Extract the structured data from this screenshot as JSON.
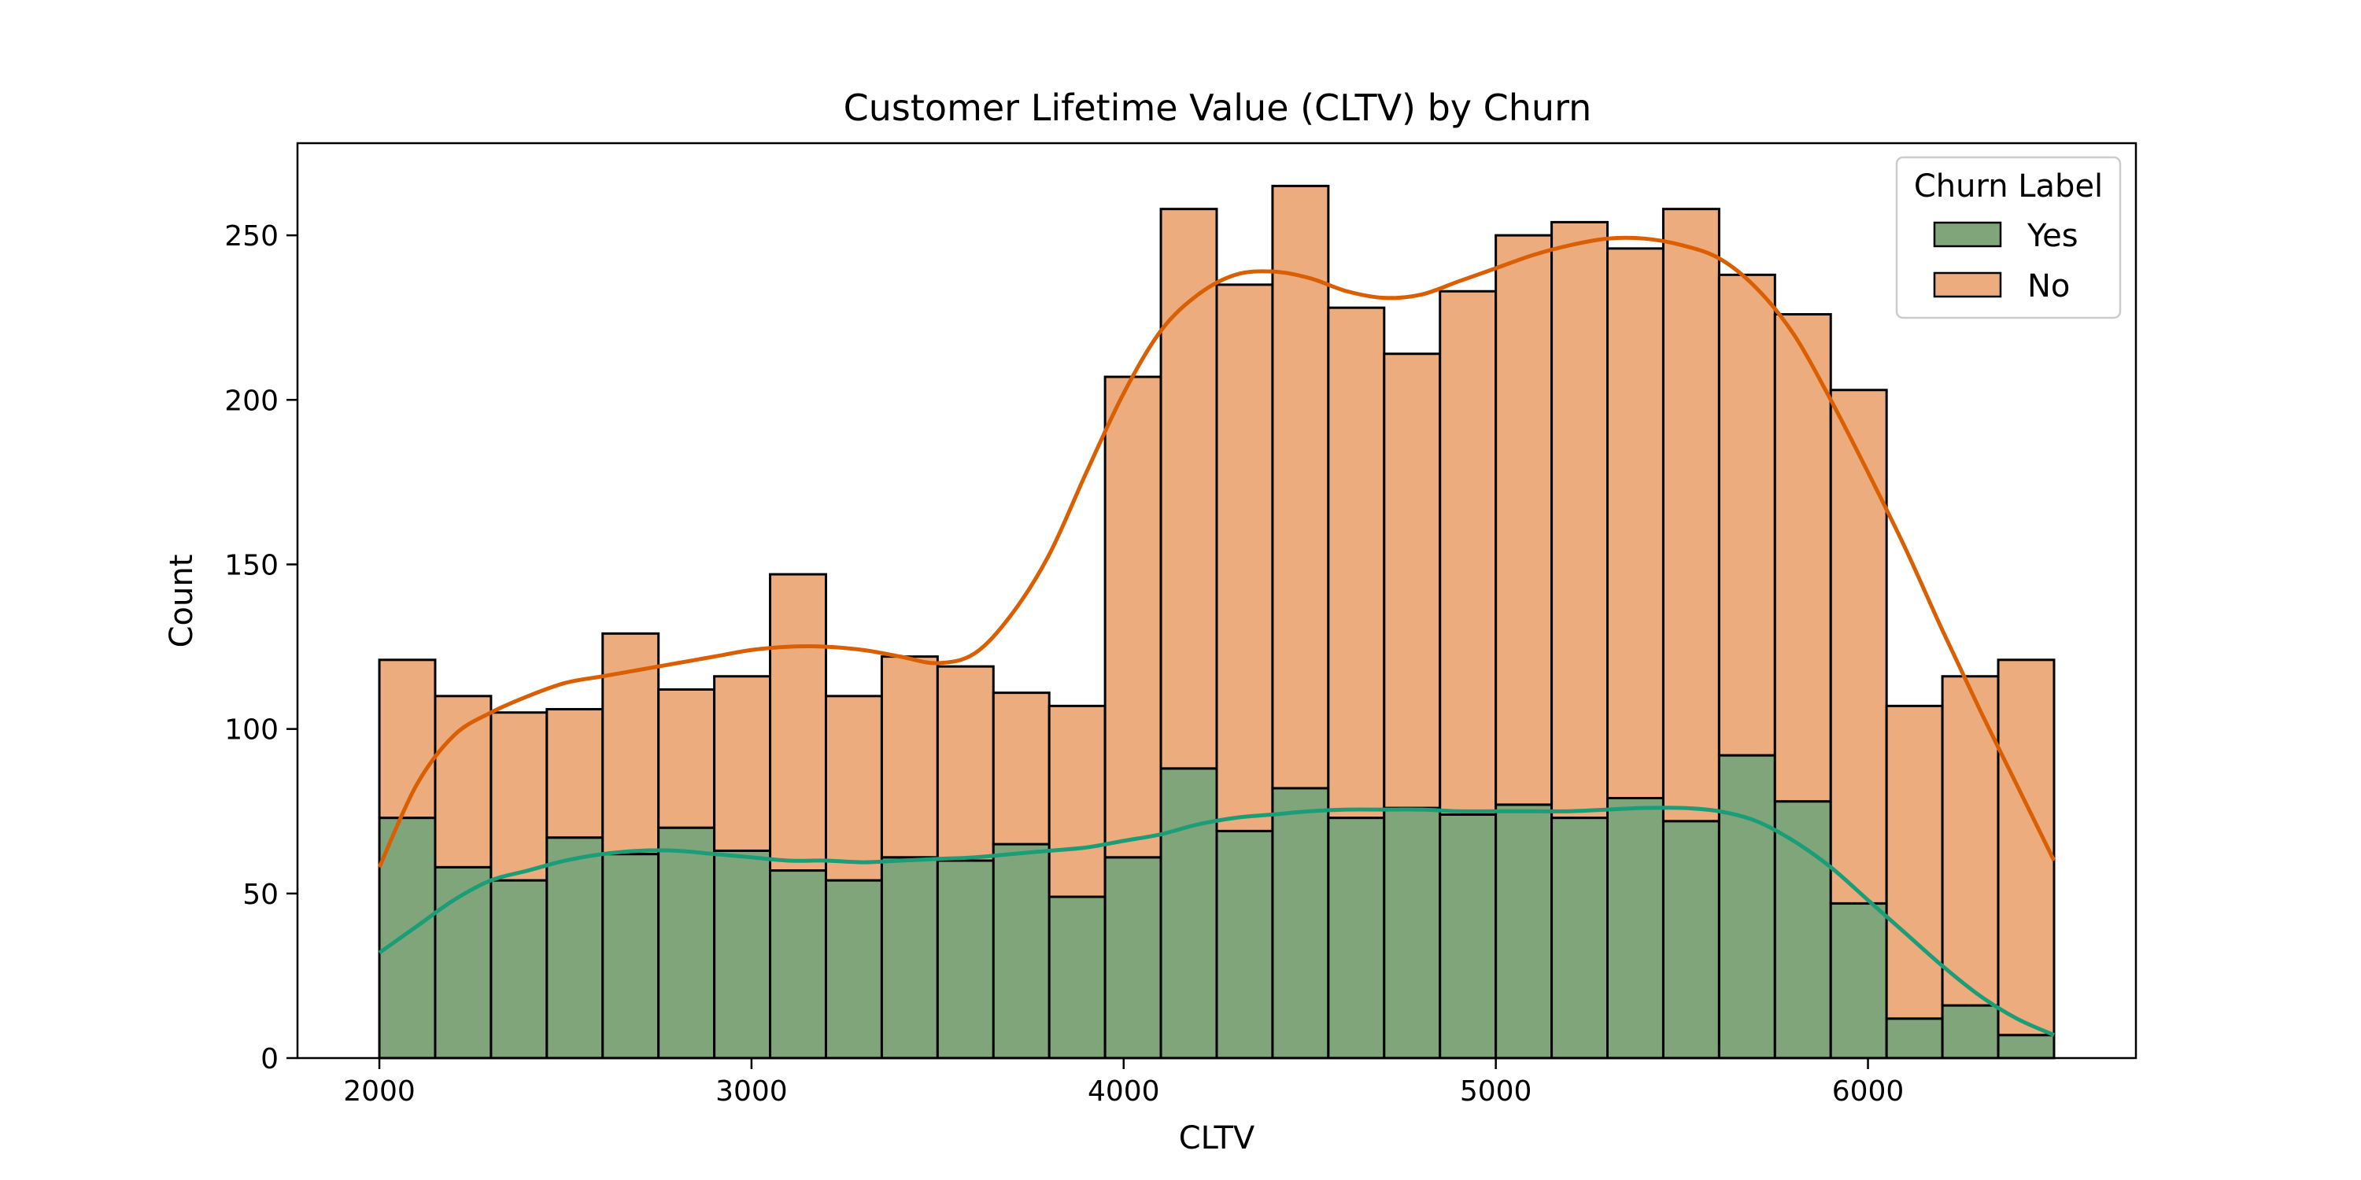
{
  "chart_data": {
    "type": "bar",
    "title": "Customer Lifetime Value (CLTV) by Churn",
    "xlabel": "CLTV",
    "ylabel": "Count",
    "x_range": [
      2000,
      6500
    ],
    "xlim": [
      1780,
      6720
    ],
    "ylim": [
      0,
      278
    ],
    "xticks": [
      2000,
      3000,
      4000,
      5000,
      6000
    ],
    "yticks": [
      0,
      50,
      100,
      150,
      200,
      250
    ],
    "bins": 30,
    "stacked": true,
    "kde": true,
    "legend": {
      "title": "Churn Label",
      "position": "top-right",
      "entries": [
        "Yes",
        "No"
      ]
    },
    "series": [
      {
        "name": "Yes",
        "color": "#1b9e77",
        "bar_color": "#80a57b",
        "values": [
          73,
          58,
          54,
          67,
          62,
          70,
          63,
          57,
          54,
          61,
          60,
          65,
          49,
          61,
          88,
          69,
          82,
          73,
          76,
          74,
          77,
          73,
          79,
          72,
          92,
          78,
          47,
          12,
          16,
          7
        ]
      },
      {
        "name": "No",
        "color": "#d95f02",
        "bar_color": "#ecac7d",
        "values": [
          48,
          52,
          51,
          39,
          67,
          42,
          53,
          90,
          56,
          61,
          59,
          46,
          58,
          146,
          170,
          166,
          183,
          155,
          138,
          159,
          173,
          181,
          167,
          186,
          146,
          148,
          156,
          95,
          100,
          114
        ]
      }
    ],
    "kde_curves": [
      {
        "name": "Yes",
        "x": [
          2000,
          2100,
          2200,
          2300,
          2400,
          2500,
          2600,
          2700,
          2800,
          2900,
          3000,
          3100,
          3200,
          3300,
          3400,
          3500,
          3600,
          3700,
          3800,
          3900,
          4000,
          4100,
          4200,
          4300,
          4400,
          4500,
          4600,
          4700,
          4800,
          4900,
          5000,
          5100,
          5200,
          5300,
          5400,
          5500,
          5600,
          5700,
          5800,
          5900,
          6000,
          6100,
          6200,
          6300,
          6400,
          6500
        ],
        "y": [
          32,
          40,
          48,
          54,
          57,
          60,
          62,
          63,
          63,
          62,
          61,
          60,
          60,
          59.5,
          60,
          60.5,
          61,
          62,
          63,
          64,
          66,
          68,
          71,
          73,
          74,
          75,
          75.5,
          75.5,
          75.5,
          75,
          75,
          75,
          75,
          75.5,
          76,
          76,
          75,
          72,
          66,
          58,
          48,
          38,
          28,
          19,
          12,
          7
        ]
      },
      {
        "name": "No",
        "x": [
          2000,
          2100,
          2200,
          2300,
          2400,
          2500,
          2600,
          2700,
          2800,
          2900,
          3000,
          3100,
          3200,
          3300,
          3400,
          3500,
          3600,
          3700,
          3800,
          3900,
          4000,
          4100,
          4200,
          4300,
          4400,
          4500,
          4600,
          4700,
          4800,
          4900,
          5000,
          5100,
          5200,
          5300,
          5400,
          5500,
          5600,
          5700,
          5800,
          5900,
          6000,
          6100,
          6200,
          6300,
          6400,
          6500
        ],
        "y": [
          58,
          83,
          98,
          105,
          110,
          114,
          116,
          118,
          120,
          122,
          124,
          125,
          125,
          124,
          122,
          120,
          123,
          135,
          153,
          178,
          202,
          221,
          232,
          238,
          239,
          237,
          233,
          231,
          232,
          236,
          240,
          244,
          247,
          249,
          249,
          247,
          243,
          234,
          220,
          200,
          178,
          155,
          130,
          106,
          83,
          60
        ]
      }
    ]
  }
}
